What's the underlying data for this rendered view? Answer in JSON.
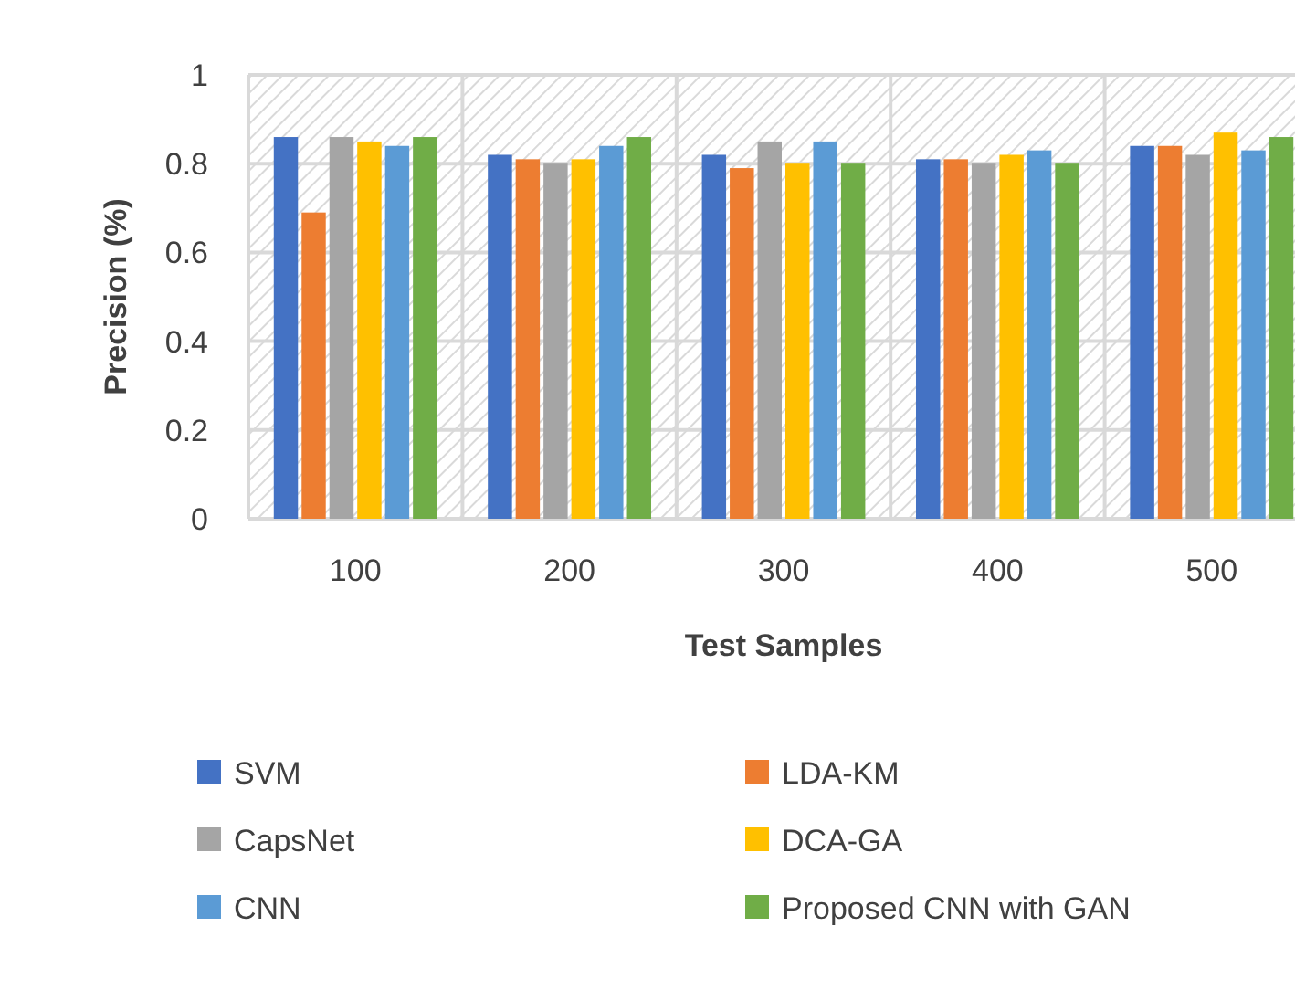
{
  "chart_data": {
    "type": "bar",
    "xlabel": "Test Samples",
    "ylabel": "Precision (%)",
    "categories": [
      "100",
      "200",
      "300",
      "400",
      "500"
    ],
    "series": [
      {
        "name": "SVM",
        "color": "#4472c4",
        "values": [
          0.86,
          0.82,
          0.82,
          0.81,
          0.84
        ]
      },
      {
        "name": "LDA-KM",
        "color": "#ed7d31",
        "values": [
          0.69,
          0.81,
          0.79,
          0.81,
          0.84
        ]
      },
      {
        "name": "CapsNet",
        "color": "#a5a5a5",
        "values": [
          0.86,
          0.8,
          0.85,
          0.8,
          0.82
        ]
      },
      {
        "name": "DCA-GA",
        "color": "#ffc000",
        "values": [
          0.85,
          0.81,
          0.8,
          0.82,
          0.87
        ]
      },
      {
        "name": "CNN",
        "color": "#5b9bd5",
        "values": [
          0.84,
          0.84,
          0.85,
          0.83,
          0.83
        ]
      },
      {
        "name": "Proposed CNN with GAN",
        "color": "#70ad47",
        "values": [
          0.86,
          0.86,
          0.8,
          0.8,
          0.86
        ]
      }
    ],
    "ylim": [
      0,
      1
    ],
    "yticks": [
      0,
      0.2,
      0.4,
      0.6,
      0.8,
      1
    ],
    "grid": true,
    "legend": "bottom"
  }
}
